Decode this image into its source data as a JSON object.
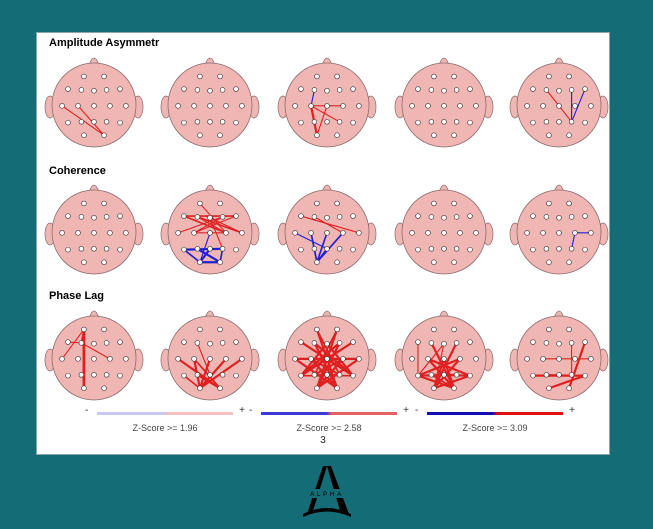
{
  "rows": [
    {
      "title": "Amplitude Asymmetr"
    },
    {
      "title": "Coherence"
    },
    {
      "title": "Phase Lag"
    }
  ],
  "scales": [
    {
      "label": "Z-Score >= 1.96",
      "minus": "-",
      "plus": "+",
      "neg_color": "#c8c8f4",
      "pos_color": "#f4c0c0"
    },
    {
      "label": "Z-Score >= 2.58",
      "minus": "-",
      "plus": "+",
      "neg_color": "#3a3ad8",
      "pos_color": "#e86060"
    },
    {
      "label": "Z-Score >= 3.09",
      "minus": "-",
      "plus": "+",
      "neg_color": "#1010b0",
      "pos_color": "#e01010"
    }
  ],
  "page_number": "3",
  "logo": {
    "text": "ALPHA"
  },
  "colors": {
    "background": "#136c76",
    "head": "#f0b6b4",
    "positive": "#e02020",
    "negative": "#2020d0"
  },
  "electrodes": [
    "Fp1",
    "Fp2",
    "F7",
    "F3",
    "Fz",
    "F4",
    "F8",
    "T3",
    "C3",
    "Cz",
    "C4",
    "T4",
    "T5",
    "P3",
    "Pz",
    "P4",
    "T6",
    "O1",
    "O2"
  ],
  "connections": [
    [
      [
        [
          "T3",
          "O2",
          1,
          "pos"
        ],
        [
          "C3",
          "O2",
          1,
          "pos"
        ]
      ],
      [],
      [
        [
          "C3",
          "O1",
          2,
          "pos"
        ],
        [
          "C3",
          "P4",
          1,
          "pos"
        ],
        [
          "C3",
          "C4",
          1,
          "pos"
        ],
        [
          "Cz",
          "O1",
          1,
          "pos"
        ],
        [
          "C3",
          "F3",
          1,
          "neg"
        ]
      ],
      [],
      [
        [
          "F3",
          "P4",
          1,
          "pos"
        ],
        [
          "F4",
          "P4",
          1,
          "neg"
        ],
        [
          "F8",
          "P4",
          1,
          "neg"
        ]
      ]
    ],
    [
      [],
      [
        [
          "F7",
          "C4",
          1.5,
          "pos"
        ],
        [
          "F3",
          "T4",
          1.5,
          "pos"
        ],
        [
          "F7",
          "F8",
          1.5,
          "pos"
        ],
        [
          "C3",
          "F8",
          1,
          "pos"
        ],
        [
          "F3",
          "C4",
          1,
          "pos"
        ],
        [
          "T3",
          "F4",
          1,
          "pos"
        ],
        [
          "Fz",
          "T4",
          1,
          "pos"
        ],
        [
          "F4",
          "C3",
          1,
          "pos"
        ],
        [
          "Fp1",
          "C4",
          1,
          "pos"
        ],
        [
          "Fz",
          "P4",
          1,
          "pos"
        ],
        [
          "C3",
          "C4",
          1,
          "pos"
        ],
        [
          "T5",
          "P4",
          2,
          "neg"
        ],
        [
          "P3",
          "O2",
          2,
          "neg"
        ],
        [
          "O1",
          "O2",
          2,
          "neg"
        ],
        [
          "Pz",
          "O1",
          2,
          "neg"
        ],
        [
          "T5",
          "O1",
          1.5,
          "neg"
        ],
        [
          "P4",
          "O2",
          1.5,
          "neg"
        ],
        [
          "Cz",
          "O1",
          1,
          "neg"
        ]
      ],
      [
        [
          "F7",
          "T4",
          1,
          "pos"
        ],
        [
          "F3",
          "C4",
          1,
          "pos"
        ],
        [
          "C3",
          "O1",
          1.5,
          "neg"
        ],
        [
          "Cz",
          "O1",
          1.5,
          "neg"
        ],
        [
          "Pz",
          "O1",
          1.5,
          "neg"
        ],
        [
          "C4",
          "O1",
          1.5,
          "neg"
        ],
        [
          "T3",
          "Pz",
          1,
          "neg"
        ],
        [
          "P3",
          "O1",
          1,
          "neg"
        ]
      ],
      [],
      [
        [
          "C4",
          "T4",
          1,
          "neg"
        ],
        [
          "C4",
          "P4",
          1,
          "neg"
        ]
      ]
    ],
    [
      [
        [
          "Fp1",
          "O1",
          2.5,
          "pos"
        ],
        [
          "Fp1",
          "F3",
          1.5,
          "pos"
        ],
        [
          "F7",
          "F3",
          1,
          "pos"
        ],
        [
          "F3",
          "C4",
          1,
          "pos"
        ],
        [
          "Fp1",
          "T3",
          1,
          "pos"
        ]
      ],
      [
        [
          "C3",
          "O1",
          2,
          "pos"
        ],
        [
          "Cz",
          "O1",
          2,
          "pos"
        ],
        [
          "C4",
          "O1",
          2,
          "pos"
        ],
        [
          "T4",
          "O1",
          2,
          "pos"
        ],
        [
          "T3",
          "O2",
          2,
          "pos"
        ],
        [
          "P3",
          "O2",
          2,
          "pos"
        ],
        [
          "C3",
          "O2",
          1.5,
          "pos"
        ],
        [
          "T5",
          "O1",
          1.5,
          "pos"
        ],
        [
          "F3",
          "Pz",
          1,
          "pos"
        ]
      ],
      [
        [
          "Fp1",
          "O2",
          2,
          "pos"
        ],
        [
          "Fp2",
          "O1",
          2,
          "pos"
        ],
        [
          "F7",
          "T6",
          2,
          "pos"
        ],
        [
          "F8",
          "T5",
          2,
          "pos"
        ],
        [
          "F3",
          "O2",
          2,
          "pos"
        ],
        [
          "F4",
          "O1",
          2,
          "pos"
        ],
        [
          "T3",
          "T4",
          2,
          "pos"
        ],
        [
          "C3",
          "P4",
          2,
          "pos"
        ],
        [
          "C4",
          "P3",
          2,
          "pos"
        ],
        [
          "Fz",
          "T5",
          2,
          "pos"
        ],
        [
          "Fz",
          "T6",
          2,
          "pos"
        ],
        [
          "T3",
          "O2",
          2,
          "pos"
        ],
        [
          "T4",
          "O1",
          2,
          "pos"
        ],
        [
          "F3",
          "T6",
          2,
          "pos"
        ],
        [
          "F4",
          "T5",
          2,
          "pos"
        ],
        [
          "C3",
          "O2",
          2,
          "pos"
        ],
        [
          "C4",
          "O1",
          2,
          "pos"
        ],
        [
          "Fp1",
          "P4",
          1.5,
          "pos"
        ],
        [
          "Fp2",
          "P3",
          1.5,
          "pos"
        ],
        [
          "T5",
          "T6",
          1.5,
          "pos"
        ],
        [
          "P3",
          "P4",
          1.5,
          "pos"
        ],
        [
          "Cz",
          "O1",
          1.5,
          "pos"
        ],
        [
          "Cz",
          "O2",
          1.5,
          "pos"
        ]
      ],
      [
        [
          "F3",
          "O2",
          2,
          "pos"
        ],
        [
          "F4",
          "O1",
          2,
          "pos"
        ],
        [
          "C3",
          "O2",
          2,
          "pos"
        ],
        [
          "C4",
          "O1",
          2,
          "pos"
        ],
        [
          "T5",
          "P4",
          2,
          "pos"
        ],
        [
          "P3",
          "T6",
          2,
          "pos"
        ],
        [
          "C3",
          "T6",
          2,
          "pos"
        ],
        [
          "C4",
          "T5",
          2,
          "pos"
        ],
        [
          "Cz",
          "O1",
          2,
          "pos"
        ],
        [
          "Cz",
          "O2",
          2,
          "pos"
        ],
        [
          "T5",
          "O2",
          2,
          "pos"
        ],
        [
          "T6",
          "O1",
          2,
          "pos"
        ],
        [
          "P3",
          "O2",
          1.5,
          "pos"
        ],
        [
          "Fz",
          "O1",
          1,
          "pos"
        ],
        [
          "Fz",
          "T5",
          1,
          "pos"
        ],
        [
          "F7",
          "T5",
          1,
          "pos"
        ]
      ],
      [
        [
          "T5",
          "T6",
          2,
          "pos"
        ],
        [
          "O2",
          "F8",
          2,
          "pos"
        ],
        [
          "O1",
          "T6",
          2,
          "pos"
        ],
        [
          "P3",
          "T6",
          1.5,
          "pos"
        ],
        [
          "C3",
          "T4",
          1,
          "pos"
        ],
        [
          "P4",
          "F4",
          1,
          "pos"
        ]
      ]
    ]
  ]
}
